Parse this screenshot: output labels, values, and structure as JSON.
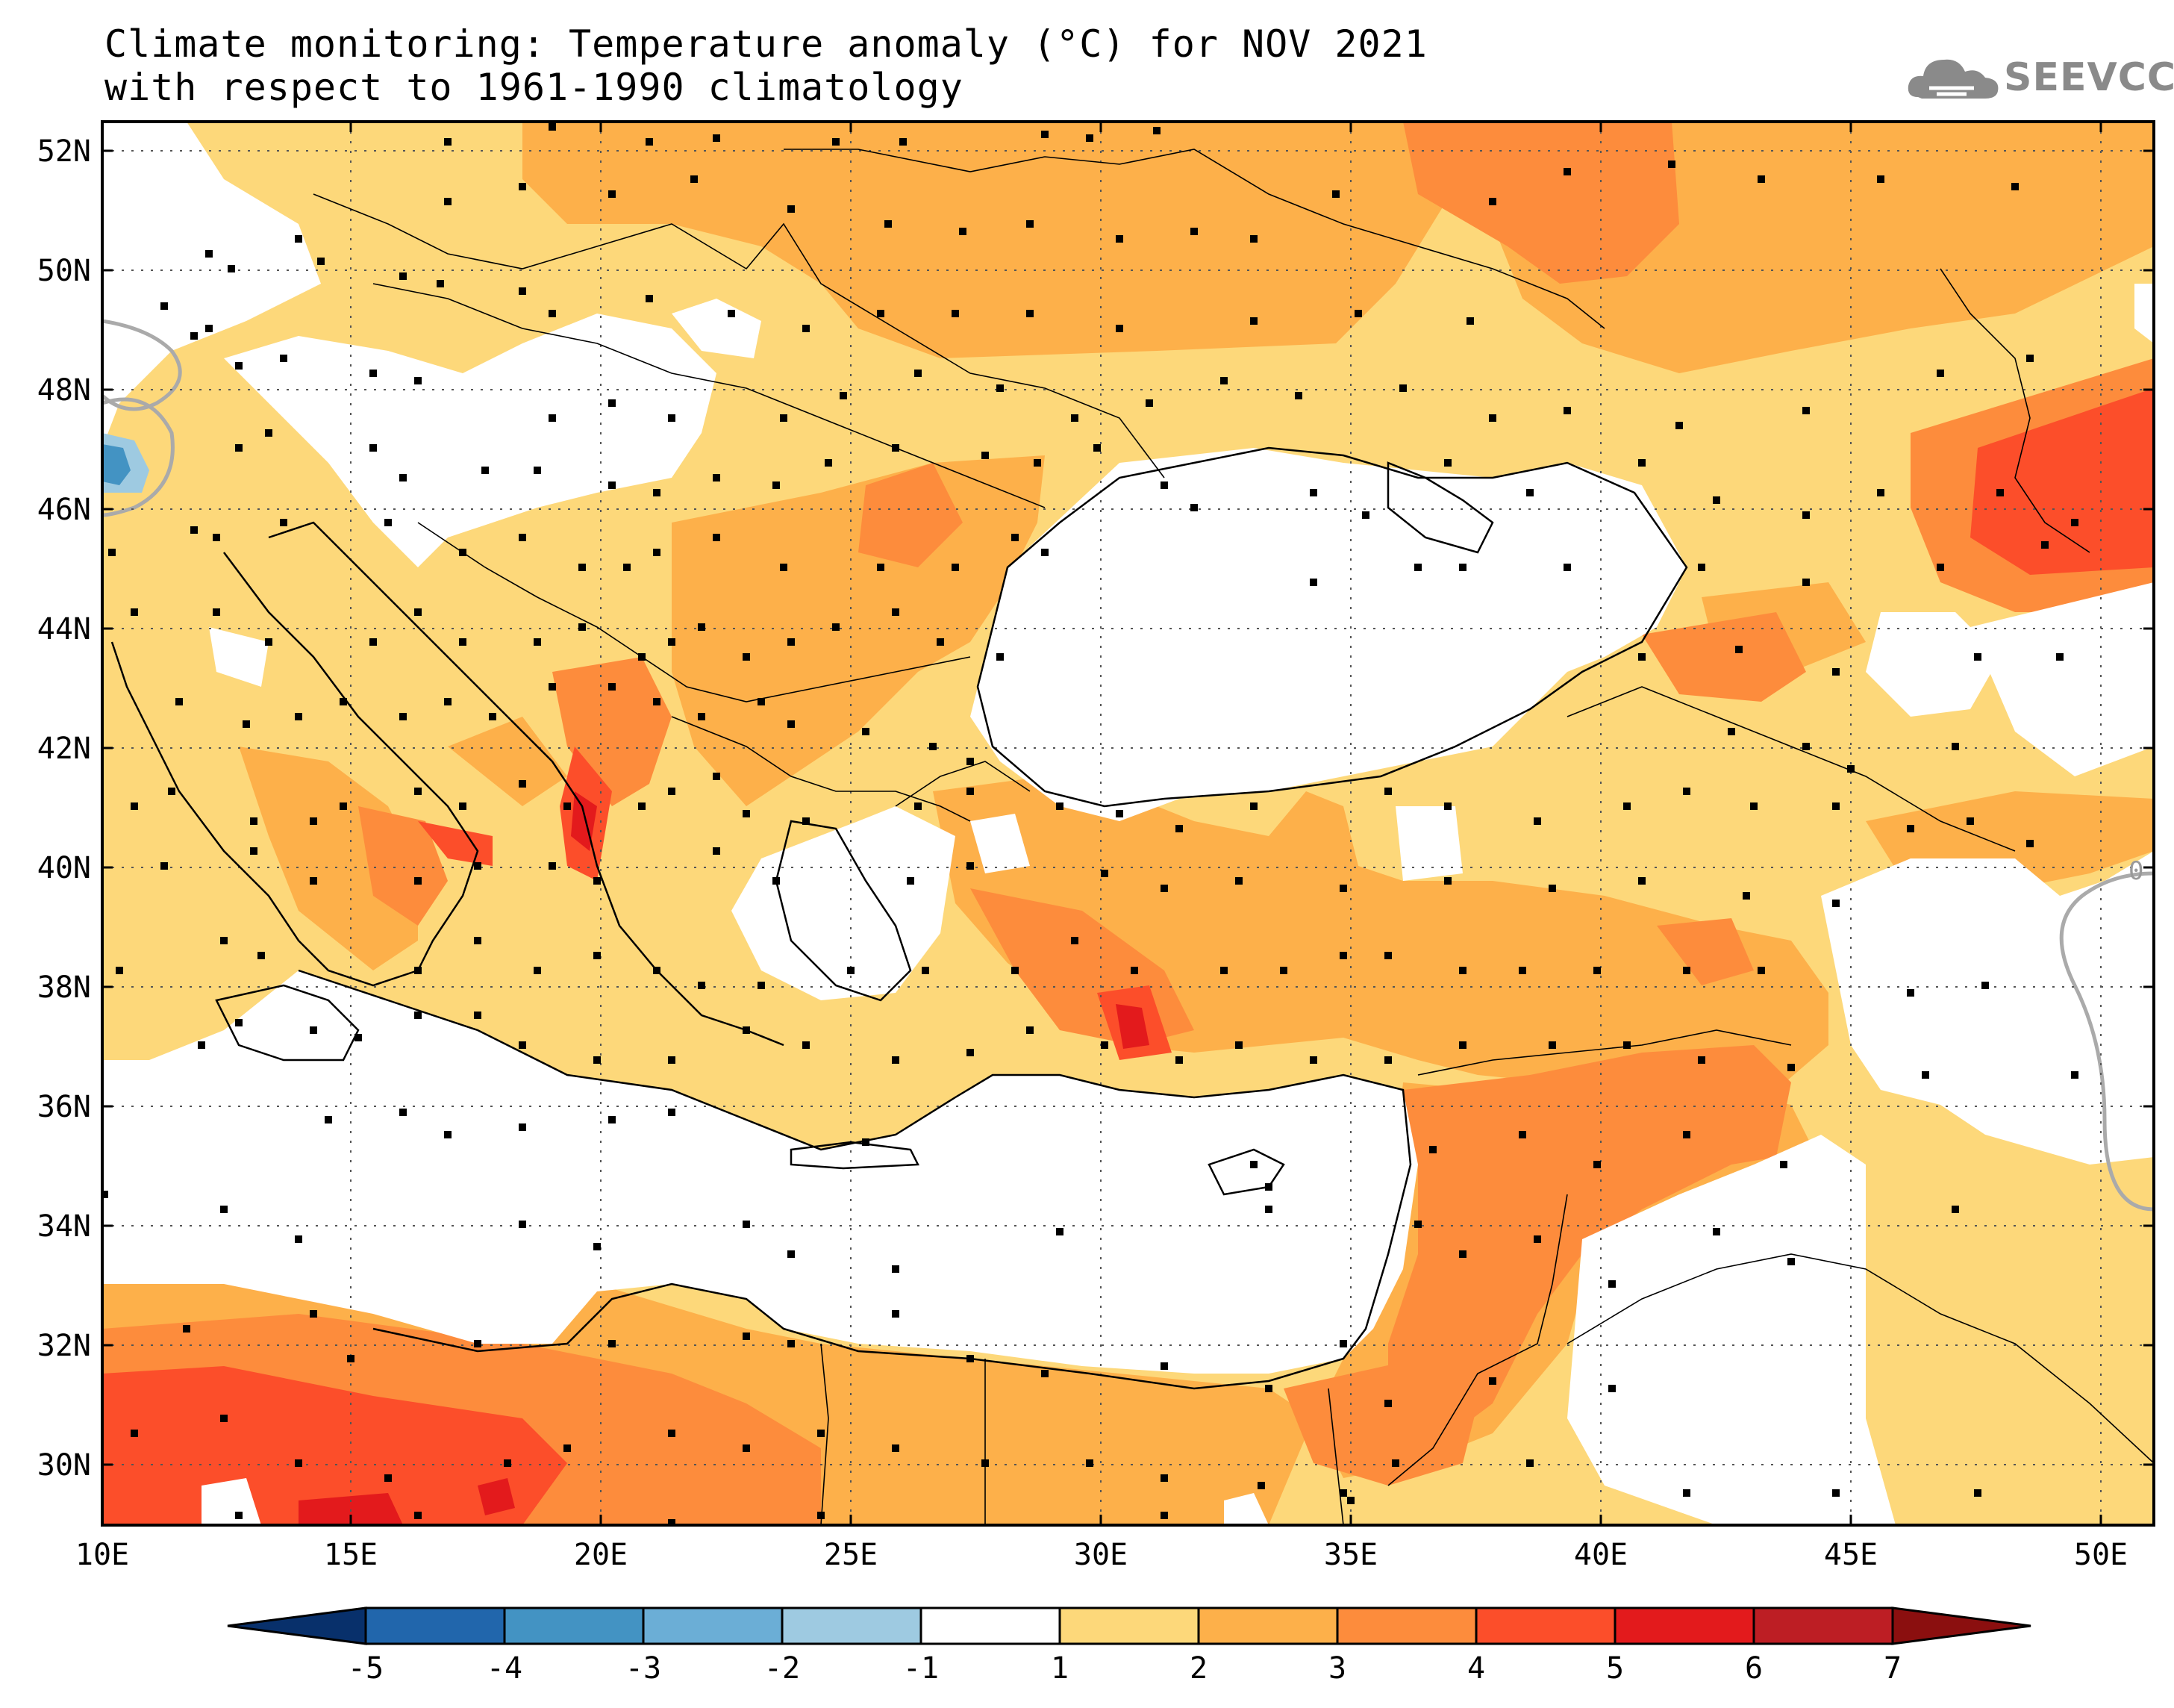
{
  "title": {
    "line1": "Climate monitoring: Temperature anomaly (°C) for NOV 2021",
    "line2": "with respect to 1961-1990 climatology"
  },
  "logo": {
    "text": "SEEVCCC",
    "icon": "cloud-icon"
  },
  "map": {
    "lon_range": [
      10,
      51
    ],
    "lat_range": [
      29,
      52.5
    ],
    "lat_labels": [
      "52N",
      "50N",
      "48N",
      "46N",
      "44N",
      "42N",
      "40N",
      "38N",
      "36N",
      "34N",
      "32N",
      "30N"
    ],
    "lon_labels": [
      "10E",
      "15E",
      "20E",
      "25E",
      "30E",
      "35E",
      "40E",
      "45E",
      "50E"
    ],
    "contour_label": "0"
  },
  "colorbar": {
    "labels": [
      "-5",
      "-4",
      "-3",
      "-2",
      "-1",
      "1",
      "2",
      "3",
      "4",
      "5",
      "6",
      "7"
    ],
    "colors": [
      "#08306b",
      "#2166ac",
      "#4393c3",
      "#6baed6",
      "#9ecae1",
      "#ffffff",
      "#fdd87a",
      "#fdb04a",
      "#fd8c3c",
      "#fc4e2a",
      "#e31a1c",
      "#bd1e24",
      "#8b0f0f"
    ]
  },
  "palette": {
    "c1_2": "#fdd87a",
    "c2_3": "#fdb04a",
    "c3_4": "#fd8c3c",
    "c4_5": "#fc4e2a",
    "c5_6": "#e31a1c",
    "neg": "#9ecae1",
    "neg2": "#4393c3",
    "zero_contour": "#aaaaaa"
  }
}
